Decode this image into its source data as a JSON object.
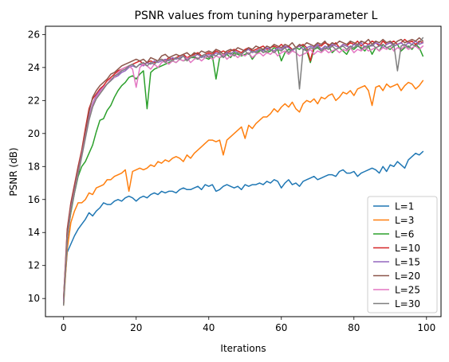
{
  "chart_data": {
    "type": "line",
    "title": "PSNR values from tuning hyperparameter L",
    "xlabel": "Iterations",
    "ylabel": "PSNR (dB)",
    "xlim": [
      -5,
      104
    ],
    "ylim": [
      8.9,
      26.5
    ],
    "xticks": [
      0,
      20,
      40,
      60,
      80,
      100
    ],
    "yticks": [
      10,
      12,
      14,
      16,
      18,
      20,
      22,
      24,
      26
    ],
    "grid": false,
    "legend_position": "lower right",
    "series": [
      {
        "name": "L=1",
        "color": "#1f77b4",
        "values": [
          10.0,
          12.8,
          13.3,
          13.8,
          14.2,
          14.5,
          14.8,
          15.2,
          15.0,
          15.3,
          15.5,
          15.8,
          15.7,
          15.7,
          15.9,
          16.0,
          15.9,
          16.1,
          16.2,
          16.1,
          15.9,
          16.1,
          16.2,
          16.1,
          16.3,
          16.4,
          16.3,
          16.5,
          16.4,
          16.5,
          16.5,
          16.4,
          16.6,
          16.7,
          16.6,
          16.6,
          16.7,
          16.8,
          16.6,
          16.9,
          16.8,
          16.9,
          16.5,
          16.6,
          16.8,
          16.9,
          16.8,
          16.7,
          16.8,
          16.6,
          16.9,
          16.8,
          16.9,
          16.9,
          17.0,
          16.9,
          17.1,
          17.0,
          17.2,
          17.1,
          16.7,
          17.0,
          17.2,
          16.9,
          17.0,
          16.8,
          17.1,
          17.2,
          17.3,
          17.4,
          17.2,
          17.3,
          17.4,
          17.5,
          17.5,
          17.4,
          17.7,
          17.8,
          17.6,
          17.6,
          17.7,
          17.4,
          17.6,
          17.7,
          17.8,
          17.9,
          17.8,
          17.6,
          18.0,
          17.7,
          18.1,
          18.0,
          18.3,
          18.1,
          17.9,
          18.4,
          18.6,
          18.8,
          18.7,
          18.9
        ]
      },
      {
        "name": "L=3",
        "color": "#ff7f0e",
        "values": [
          9.6,
          13.0,
          14.6,
          15.3,
          15.8,
          15.8,
          16.0,
          16.4,
          16.3,
          16.7,
          16.8,
          16.9,
          17.2,
          17.2,
          17.4,
          17.5,
          17.6,
          17.8,
          16.5,
          17.7,
          17.8,
          17.9,
          17.8,
          17.9,
          18.1,
          18.0,
          18.3,
          18.2,
          18.4,
          18.3,
          18.5,
          18.6,
          18.5,
          18.3,
          18.7,
          18.5,
          18.8,
          19.0,
          19.2,
          19.4,
          19.6,
          19.6,
          19.5,
          19.6,
          18.7,
          19.6,
          19.8,
          20.0,
          20.2,
          20.4,
          19.7,
          20.5,
          20.3,
          20.6,
          20.8,
          21.0,
          21.0,
          21.2,
          21.5,
          21.3,
          21.6,
          21.8,
          21.6,
          21.9,
          21.5,
          21.3,
          21.8,
          22.0,
          21.9,
          22.1,
          21.8,
          22.2,
          22.1,
          22.3,
          22.4,
          22.0,
          22.2,
          22.5,
          22.4,
          22.6,
          22.3,
          22.7,
          22.8,
          22.9,
          22.6,
          21.7,
          22.8,
          22.9,
          22.6,
          23.0,
          22.8,
          22.9,
          23.0,
          22.6,
          22.9,
          23.1,
          23.0,
          22.7,
          22.9,
          23.2
        ]
      },
      {
        "name": "L=6",
        "color": "#2ca02c",
        "values": [
          10.1,
          13.8,
          15.2,
          16.4,
          17.4,
          18.0,
          18.3,
          18.8,
          19.3,
          20.1,
          20.8,
          20.9,
          21.4,
          21.7,
          22.2,
          22.6,
          22.9,
          23.1,
          23.4,
          23.5,
          23.3,
          23.6,
          23.8,
          21.5,
          23.7,
          23.9,
          24.0,
          24.1,
          24.2,
          24.3,
          24.4,
          24.3,
          24.5,
          24.4,
          24.5,
          24.6,
          24.6,
          24.5,
          24.7,
          24.6,
          24.5,
          24.7,
          23.3,
          24.6,
          24.7,
          24.8,
          24.6,
          24.9,
          24.8,
          24.7,
          24.8,
          24.9,
          24.5,
          24.8,
          25.0,
          25.1,
          24.9,
          25.0,
          25.2,
          25.1,
          24.4,
          24.9,
          25.1,
          25.0,
          25.2,
          25.1,
          25.3,
          25.0,
          24.3,
          25.1,
          25.2,
          25.0,
          25.1,
          25.3,
          24.9,
          25.1,
          25.2,
          25.0,
          24.8,
          25.2,
          25.1,
          25.3,
          25.2,
          25.0,
          25.3,
          24.8,
          25.2,
          25.0,
          25.4,
          25.2,
          25.1,
          25.3,
          25.4,
          25.0,
          25.2,
          25.3,
          25.1,
          25.4,
          25.2,
          24.7
        ]
      },
      {
        "name": "L=10",
        "color": "#d62728",
        "values": [
          10.0,
          14.2,
          15.8,
          16.9,
          18.0,
          19.0,
          20.3,
          21.5,
          22.1,
          22.4,
          22.7,
          22.9,
          23.2,
          23.4,
          23.6,
          23.8,
          23.9,
          24.0,
          24.1,
          24.2,
          24.3,
          24.4,
          24.2,
          24.3,
          24.4,
          24.3,
          24.4,
          24.5,
          24.4,
          24.6,
          24.5,
          24.6,
          24.7,
          24.8,
          24.6,
          24.7,
          24.8,
          24.9,
          24.7,
          24.8,
          24.9,
          24.8,
          25.0,
          24.9,
          25.0,
          24.9,
          25.0,
          25.1,
          25.0,
          24.9,
          25.1,
          25.2,
          25.0,
          25.1,
          25.2,
          25.3,
          25.1,
          25.2,
          25.3,
          25.2,
          25.4,
          25.2,
          25.3,
          25.1,
          25.2,
          25.3,
          25.4,
          25.2,
          24.4,
          25.3,
          25.4,
          25.3,
          25.5,
          25.4,
          25.3,
          25.5,
          25.2,
          25.4,
          25.3,
          25.5,
          25.4,
          25.6,
          25.3,
          25.5,
          25.4,
          25.6,
          25.5,
          25.3,
          25.6,
          25.4,
          25.5,
          25.6,
          25.4,
          25.5,
          25.7,
          25.5,
          25.6,
          25.4,
          25.6,
          25.5
        ]
      },
      {
        "name": "L=15",
        "color": "#9467bd",
        "values": [
          9.8,
          13.9,
          15.6,
          16.7,
          17.8,
          18.8,
          19.9,
          21.0,
          21.8,
          22.3,
          22.6,
          22.8,
          23.0,
          23.2,
          23.4,
          23.5,
          23.7,
          23.8,
          24.0,
          24.1,
          24.0,
          24.2,
          24.1,
          24.3,
          24.2,
          24.4,
          24.3,
          24.4,
          24.5,
          24.4,
          24.6,
          24.5,
          24.6,
          24.7,
          24.5,
          24.6,
          24.7,
          24.8,
          24.6,
          24.7,
          24.8,
          24.7,
          24.9,
          24.8,
          24.7,
          24.9,
          24.8,
          25.0,
          24.9,
          24.8,
          25.0,
          25.1,
          24.9,
          25.0,
          25.1,
          25.0,
          25.2,
          25.1,
          25.0,
          25.2,
          25.1,
          25.3,
          25.2,
          25.0,
          25.2,
          25.3,
          25.1,
          25.2,
          25.3,
          25.2,
          25.4,
          25.1,
          25.3,
          25.2,
          25.4,
          25.3,
          25.2,
          25.4,
          25.3,
          25.2,
          25.4,
          25.3,
          25.5,
          25.2,
          25.4,
          25.3,
          25.5,
          25.4,
          25.2,
          25.4,
          25.5,
          25.3,
          25.4,
          25.5,
          25.3,
          25.5,
          25.4,
          25.6,
          25.4,
          25.5
        ]
      },
      {
        "name": "L=20",
        "color": "#8c564b",
        "values": [
          9.7,
          14.1,
          15.7,
          16.8,
          17.9,
          18.9,
          20.1,
          21.3,
          22.2,
          22.6,
          22.9,
          23.1,
          23.3,
          23.6,
          23.7,
          23.9,
          24.1,
          24.2,
          24.3,
          24.4,
          24.5,
          24.4,
          24.5,
          24.3,
          24.6,
          24.5,
          24.4,
          24.7,
          24.8,
          24.6,
          24.7,
          24.8,
          24.7,
          24.8,
          24.9,
          24.7,
          24.9,
          24.8,
          25.0,
          24.9,
          25.0,
          24.9,
          25.1,
          25.0,
          24.8,
          25.0,
          25.1,
          25.0,
          25.2,
          25.1,
          25.0,
          25.2,
          25.1,
          25.3,
          25.2,
          25.1,
          25.3,
          25.2,
          25.4,
          25.3,
          25.2,
          25.4,
          25.3,
          25.5,
          25.2,
          25.4,
          25.3,
          25.5,
          25.4,
          25.3,
          25.5,
          25.4,
          25.6,
          25.3,
          25.5,
          25.4,
          25.6,
          25.5,
          25.4,
          25.6,
          25.5,
          25.4,
          25.6,
          25.5,
          25.7,
          25.4,
          25.6,
          25.5,
          25.7,
          25.5,
          25.6,
          25.4,
          25.6,
          25.7,
          25.5,
          25.6,
          25.7,
          25.6,
          25.8,
          25.6
        ]
      },
      {
        "name": "L=25",
        "color": "#e377c2",
        "values": [
          9.8,
          13.6,
          15.4,
          16.5,
          17.6,
          18.7,
          19.8,
          20.9,
          21.7,
          22.2,
          22.5,
          22.8,
          23.0,
          23.3,
          23.4,
          23.7,
          23.9,
          24.0,
          24.1,
          23.9,
          22.8,
          24.0,
          24.2,
          24.1,
          23.9,
          24.2,
          24.0,
          24.3,
          24.4,
          24.2,
          24.4,
          24.3,
          24.5,
          24.4,
          24.6,
          24.3,
          24.5,
          24.6,
          24.4,
          24.6,
          24.7,
          24.5,
          24.7,
          24.6,
          24.8,
          24.5,
          24.7,
          24.8,
          24.6,
          24.8,
          24.7,
          24.9,
          24.6,
          24.8,
          24.9,
          24.7,
          24.9,
          24.8,
          25.0,
          24.7,
          24.9,
          25.0,
          24.8,
          25.0,
          24.9,
          24.7,
          24.8,
          24.9,
          25.1,
          24.8,
          25.0,
          24.9,
          25.1,
          24.9,
          25.0,
          25.1,
          24.9,
          25.1,
          25.0,
          25.2,
          24.9,
          25.1,
          25.0,
          25.2,
          25.0,
          25.1,
          25.2,
          25.0,
          25.2,
          25.1,
          25.3,
          25.0,
          25.2,
          25.1,
          25.3,
          25.1,
          25.2,
          25.3,
          25.1,
          25.3
        ]
      },
      {
        "name": "L=30",
        "color": "#7f7f7f",
        "values": [
          9.6,
          13.5,
          15.3,
          16.4,
          17.5,
          18.6,
          19.7,
          20.8,
          21.6,
          22.1,
          22.4,
          22.7,
          23.0,
          23.2,
          23.5,
          23.6,
          23.8,
          23.9,
          24.1,
          24.2,
          24.0,
          24.2,
          24.3,
          24.1,
          24.3,
          24.2,
          24.4,
          24.5,
          24.3,
          24.5,
          24.4,
          24.6,
          24.5,
          24.7,
          24.4,
          24.6,
          24.7,
          24.5,
          24.7,
          24.8,
          24.6,
          24.8,
          24.7,
          24.9,
          24.6,
          24.8,
          24.9,
          24.7,
          24.9,
          24.8,
          25.0,
          24.8,
          25.0,
          24.9,
          25.1,
          24.9,
          25.0,
          25.1,
          24.9,
          25.1,
          25.0,
          25.2,
          24.9,
          25.1,
          25.2,
          22.7,
          25.1,
          25.0,
          25.2,
          25.1,
          25.3,
          25.0,
          25.2,
          25.1,
          25.3,
          25.1,
          25.2,
          25.3,
          25.1,
          25.3,
          25.2,
          25.4,
          25.1,
          25.3,
          25.2,
          25.4,
          25.2,
          25.3,
          25.4,
          25.2,
          25.3,
          25.4,
          23.8,
          25.3,
          25.4,
          25.2,
          25.4,
          25.3,
          25.5,
          25.8
        ]
      }
    ]
  }
}
